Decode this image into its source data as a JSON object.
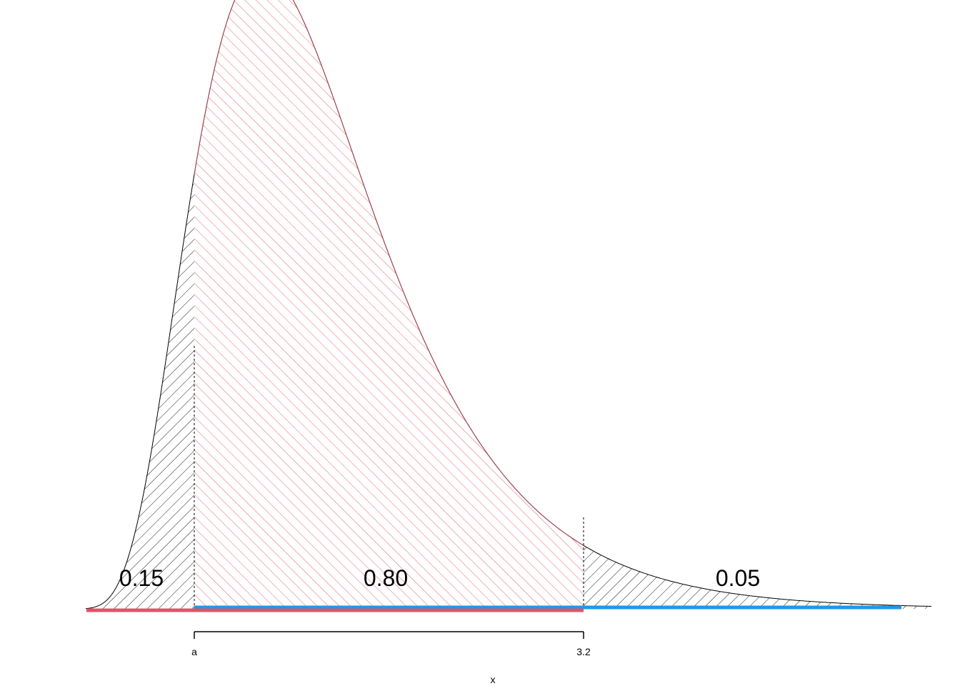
{
  "chart_data": {
    "type": "area",
    "title": "",
    "xlabel": "x",
    "ylabel": "",
    "curve": "right-skewed density",
    "x_tick_labels": [
      "a",
      "3.2"
    ],
    "regions": [
      {
        "name": "left tail",
        "probability_label": "0.15",
        "hatch_color": "#000000"
      },
      {
        "name": "middle",
        "probability_label": "0.80",
        "hatch_color": "#DF536B"
      },
      {
        "name": "right tail",
        "probability_label": "0.05",
        "hatch_color": "#000000"
      }
    ],
    "intervals": [
      {
        "name": "lower interval",
        "from": "-inf",
        "to": "3.2",
        "color": "#DF536B"
      },
      {
        "name": "upper interval",
        "from": "a",
        "to": "+inf",
        "color": "#2297E6"
      }
    ],
    "grid": false,
    "legend": "none"
  }
}
